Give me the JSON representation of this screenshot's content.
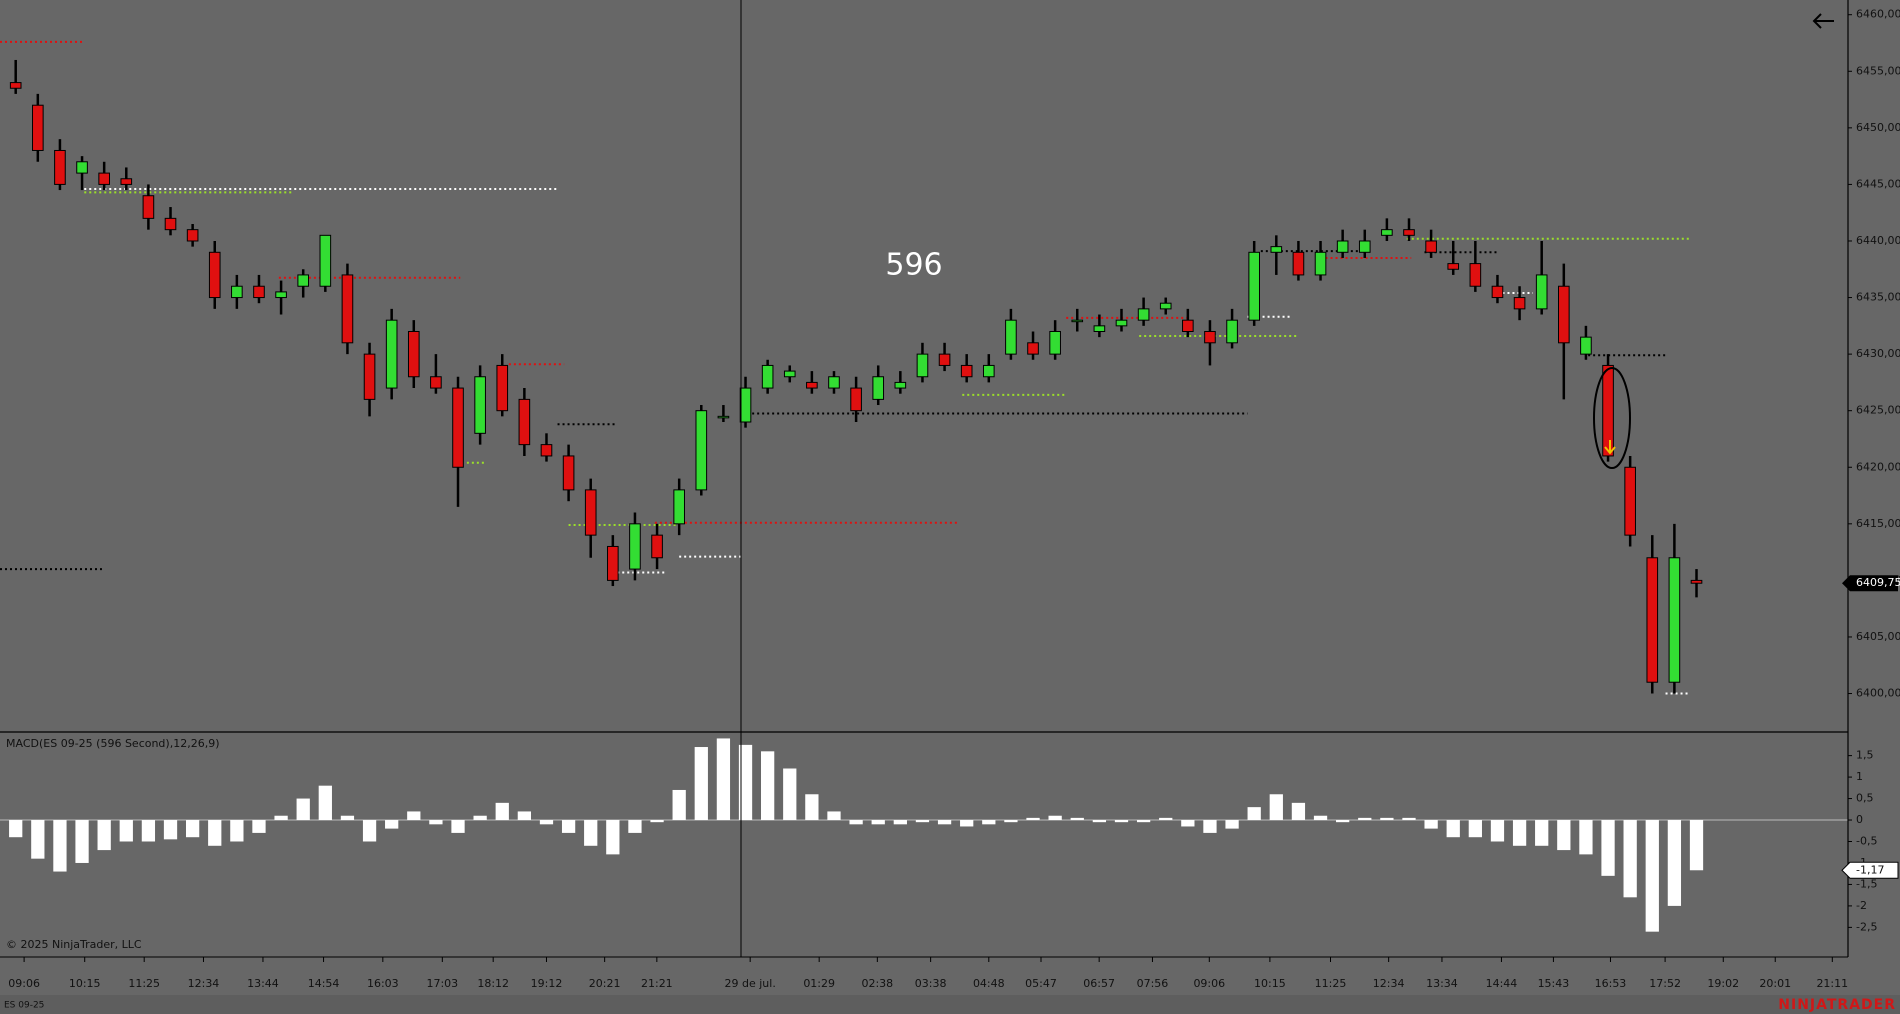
{
  "chart_data": [
    {
      "type": "candlestick",
      "annotation": "596",
      "open": [
        6454,
        6452,
        6448,
        6446,
        6446,
        6445.5,
        6444,
        6442,
        6441,
        6439,
        6435,
        6436,
        6435,
        6436,
        6436,
        6437,
        6430,
        6427,
        6432,
        6428,
        6427,
        6423,
        6429,
        6426,
        6422,
        6421,
        6418,
        6413,
        6411,
        6414,
        6415,
        6418,
        6424.5,
        6424,
        6427,
        6428,
        6427.5,
        6427,
        6427,
        6426,
        6427,
        6428,
        6430,
        6429,
        6428,
        6430,
        6431,
        6430,
        6433,
        6432,
        6432.5,
        6433,
        6434,
        6433,
        6432,
        6431,
        6433,
        6439,
        6439,
        6437,
        6439,
        6439,
        6440.5,
        6441,
        6440,
        6438,
        6438,
        6436,
        6435,
        6434,
        6436,
        6430,
        6429,
        6420,
        6412,
        6401,
        6410
      ],
      "high": [
        6456,
        6453,
        6449,
        6447.5,
        6447,
        6446.5,
        6445,
        6443,
        6441.5,
        6440,
        6437,
        6437,
        6436.5,
        6437.5,
        6440.5,
        6438,
        6431,
        6434,
        6433,
        6430,
        6428,
        6429,
        6430,
        6427,
        6423,
        6422,
        6419,
        6414,
        6416,
        6415,
        6419,
        6425.5,
        6425.5,
        6428,
        6429.5,
        6429,
        6428.5,
        6428.5,
        6428,
        6429,
        6428.5,
        6431,
        6431,
        6430,
        6430,
        6434,
        6432,
        6433,
        6434,
        6433.5,
        6434,
        6435,
        6435,
        6434,
        6433,
        6434,
        6440,
        6440.5,
        6440,
        6440,
        6441,
        6441,
        6442,
        6442,
        6441,
        6440,
        6440,
        6437,
        6436,
        6440,
        6438,
        6432.5,
        6430,
        6421,
        6414,
        6415,
        6411
      ],
      "low": [
        6453,
        6447,
        6444.5,
        6444.5,
        6444.5,
        6444.5,
        6441,
        6440.5,
        6439.5,
        6434,
        6434,
        6434.5,
        6433.5,
        6435,
        6435.5,
        6430,
        6424.5,
        6426,
        6427,
        6426.5,
        6416.5,
        6422,
        6424.5,
        6421,
        6420.5,
        6417,
        6412,
        6409.5,
        6410,
        6411,
        6414,
        6417.5,
        6424,
        6423.5,
        6426.5,
        6427.5,
        6426.5,
        6426.5,
        6424,
        6425.5,
        6426.5,
        6427.5,
        6428.5,
        6427.5,
        6427.5,
        6429.5,
        6429.5,
        6429.5,
        6432,
        6431.5,
        6432,
        6432.5,
        6433.5,
        6431.5,
        6429,
        6430.5,
        6432.5,
        6437,
        6436.5,
        6436.5,
        6438.5,
        6438.5,
        6440,
        6440,
        6438.5,
        6437,
        6435.5,
        6434.5,
        6433,
        6433.5,
        6426,
        6429.5,
        6420.5,
        6413,
        6400,
        6400,
        6408.5
      ],
      "close": [
        6453.5,
        6448,
        6445,
        6447,
        6445,
        6445,
        6442,
        6441,
        6440,
        6435,
        6436,
        6435,
        6435.5,
        6437,
        6440.5,
        6431,
        6426,
        6433,
        6428,
        6427,
        6420,
        6428,
        6425,
        6422,
        6421,
        6418,
        6414,
        6410,
        6415,
        6412,
        6418,
        6425,
        6424.5,
        6427,
        6429,
        6428.5,
        6427,
        6428,
        6425,
        6428,
        6427.5,
        6430,
        6429,
        6428,
        6429,
        6433,
        6430,
        6432,
        6433,
        6432.5,
        6433,
        6434,
        6434.5,
        6432,
        6431,
        6433,
        6439,
        6439.5,
        6437,
        6439,
        6440,
        6440,
        6441,
        6440.5,
        6439,
        6437.5,
        6436,
        6435,
        6434,
        6437,
        6431,
        6431.5,
        6421,
        6414,
        6401,
        6412,
        6409.75
      ],
      "up_color": "#33dd33",
      "down_color": "#e01010",
      "wick_color": "#000000",
      "xlim": [
        -0.71,
        82.85
      ],
      "xticks": [
        {
          "value": 0.38,
          "label": "09:06"
        },
        {
          "value": 3.12,
          "label": "10:15"
        },
        {
          "value": 5.81,
          "label": "11:25"
        },
        {
          "value": 8.49,
          "label": "12:34"
        },
        {
          "value": 11.18,
          "label": "13:44"
        },
        {
          "value": 13.92,
          "label": "14:54"
        },
        {
          "value": 16.6,
          "label": "16:03"
        },
        {
          "value": 19.29,
          "label": "17:03"
        },
        {
          "value": 21.59,
          "label": "18:12"
        },
        {
          "value": 24.0,
          "label": "19:12"
        },
        {
          "value": 26.63,
          "label": "20:21"
        },
        {
          "value": 28.99,
          "label": "21:21"
        },
        {
          "value": 33.21,
          "label": "29 de jul."
        },
        {
          "value": 36.33,
          "label": "01:29"
        },
        {
          "value": 38.96,
          "label": "02:38"
        },
        {
          "value": 41.37,
          "label": "03:38"
        },
        {
          "value": 44.0,
          "label": "04:48"
        },
        {
          "value": 46.36,
          "label": "05:47"
        },
        {
          "value": 48.99,
          "label": "06:57"
        },
        {
          "value": 51.4,
          "label": "07:56"
        },
        {
          "value": 53.97,
          "label": "09:06"
        },
        {
          "value": 56.71,
          "label": "10:15"
        },
        {
          "value": 59.45,
          "label": "11:25"
        },
        {
          "value": 62.08,
          "label": "12:34"
        },
        {
          "value": 64.49,
          "label": "13:34"
        },
        {
          "value": 67.18,
          "label": "14:44"
        },
        {
          "value": 69.53,
          "label": "15:43"
        },
        {
          "value": 72.11,
          "label": "16:53"
        },
        {
          "value": 74.58,
          "label": "17:52"
        },
        {
          "value": 77.21,
          "label": "19:02"
        },
        {
          "value": 79.56,
          "label": "20:01"
        },
        {
          "value": 82.14,
          "label": "21:11"
        }
      ],
      "ylim": [
        6396.6,
        6461.3
      ],
      "yticks": [
        {
          "value": 6400,
          "label": "6400,00"
        },
        {
          "value": 6405,
          "label": "6405,00"
        },
        {
          "value": 6410,
          "label": "6410,00"
        },
        {
          "value": 6415,
          "label": "6415,00"
        },
        {
          "value": 6420,
          "label": "6420,00"
        },
        {
          "value": 6425,
          "label": "6425,00"
        },
        {
          "value": 6430,
          "label": "6430,00"
        },
        {
          "value": 6435,
          "label": "6435,00"
        },
        {
          "value": 6440,
          "label": "6440,00"
        },
        {
          "value": 6445,
          "label": "6445,00"
        },
        {
          "value": 6450,
          "label": "6450,00"
        },
        {
          "value": 6455,
          "label": "6455,00"
        },
        {
          "value": 6460,
          "label": "6460,00"
        }
      ],
      "last_price": {
        "value": 6409.75,
        "label": "6409,75"
      },
      "levels": [
        {
          "price": 6457.6,
          "start": -0.71,
          "end": 3.1,
          "color": "#e01010"
        },
        {
          "price": 6444.6,
          "start": 3.1,
          "end": 24.5,
          "color": "#ffffff"
        },
        {
          "price": 6444.3,
          "start": 3.1,
          "end": 12.5,
          "color": "#9be02a"
        },
        {
          "price": 6436.75,
          "start": 11.9,
          "end": 20.1,
          "color": "#e01010"
        },
        {
          "price": 6429.1,
          "start": 22.3,
          "end": 24.8,
          "color": "#e01010"
        },
        {
          "price": 6423.8,
          "start": 24.5,
          "end": 27.2,
          "color": "#000000"
        },
        {
          "price": 6420.4,
          "start": 20.4,
          "end": 21.2,
          "color": "#9be02a"
        },
        {
          "price": 6411.0,
          "start": -0.71,
          "end": 3.9,
          "color": "#000000"
        },
        {
          "price": 6415.1,
          "start": 28.9,
          "end": 42.6,
          "color": "#e01010"
        },
        {
          "price": 6414.9,
          "start": 25.0,
          "end": 30.0,
          "color": "#9be02a"
        },
        {
          "price": 6412.1,
          "start": 30.0,
          "end": 32.9,
          "color": "#ffffff"
        },
        {
          "price": 6410.7,
          "start": 27.2,
          "end": 29.4,
          "color": "#ffffff"
        },
        {
          "price": 6424.75,
          "start": 33.3,
          "end": 55.7,
          "color": "#000000"
        },
        {
          "price": 6426.4,
          "start": 42.8,
          "end": 47.5,
          "color": "#9be02a"
        },
        {
          "price": 6433.2,
          "start": 47.5,
          "end": 53.0,
          "color": "#e01010"
        },
        {
          "price": 6431.6,
          "start": 50.8,
          "end": 57.9,
          "color": "#9be02a"
        },
        {
          "price": 6433.3,
          "start": 55.7,
          "end": 57.6,
          "color": "#ffffff"
        },
        {
          "price": 6439.1,
          "start": 56.3,
          "end": 61.2,
          "color": "#000000"
        },
        {
          "price": 6438.5,
          "start": 59.0,
          "end": 63.1,
          "color": "#e01010"
        },
        {
          "price": 6440.2,
          "start": 62.9,
          "end": 75.7,
          "color": "#9be02a"
        },
        {
          "price": 6439.0,
          "start": 63.7,
          "end": 67.0,
          "color": "#000000"
        },
        {
          "price": 6435.4,
          "start": 67.0,
          "end": 68.6,
          "color": "#ffffff"
        },
        {
          "price": 6429.9,
          "start": 71.1,
          "end": 74.6,
          "color": "#000000"
        },
        {
          "price": 6400.0,
          "start": 74.6,
          "end": 75.7,
          "color": "#ffffff"
        }
      ]
    },
    {
      "type": "bar",
      "title": "MACD(ES 09-25 (596 Second),12,26,9)",
      "values": [
        -0.4,
        -0.9,
        -1.2,
        -1.0,
        -0.7,
        -0.5,
        -0.5,
        -0.45,
        -0.4,
        -0.6,
        -0.5,
        -0.3,
        0.1,
        0.5,
        0.8,
        0.1,
        -0.5,
        -0.2,
        0.2,
        -0.1,
        -0.3,
        0.1,
        0.4,
        0.2,
        -0.1,
        -0.3,
        -0.6,
        -0.8,
        -0.3,
        -0.05,
        0.7,
        1.7,
        1.9,
        1.75,
        1.6,
        1.2,
        0.6,
        0.2,
        -0.1,
        -0.1,
        -0.1,
        -0.05,
        -0.1,
        -0.15,
        -0.1,
        -0.05,
        0.05,
        0.1,
        0.05,
        -0.05,
        -0.05,
        -0.05,
        0.05,
        -0.15,
        -0.3,
        -0.2,
        0.3,
        0.6,
        0.4,
        0.1,
        -0.05,
        0.05,
        0.05,
        0.05,
        -0.2,
        -0.4,
        -0.4,
        -0.5,
        -0.6,
        -0.6,
        -0.7,
        -0.8,
        -1.3,
        -1.8,
        -2.6,
        -2.0,
        -1.17
      ],
      "color": "#ffffff",
      "ylim": [
        -3.19,
        2.05
      ],
      "yticks": [
        {
          "value": -2.5,
          "label": "-2,5"
        },
        -2,
        {
          "value": -1.5,
          "label": "-1,5"
        },
        -1,
        {
          "value": -0.5,
          "label": "-0,5"
        },
        0,
        {
          "value": 0.5,
          "label": "0,5"
        },
        1,
        {
          "value": 1.5,
          "label": "1,5"
        }
      ],
      "last_value": {
        "value": -1.17,
        "label": "-1,17"
      }
    }
  ],
  "footer": {
    "copyright": "© 2025 NinjaTrader, LLC",
    "instrument": "ES 09-25",
    "brand": "NINJATRADER"
  }
}
